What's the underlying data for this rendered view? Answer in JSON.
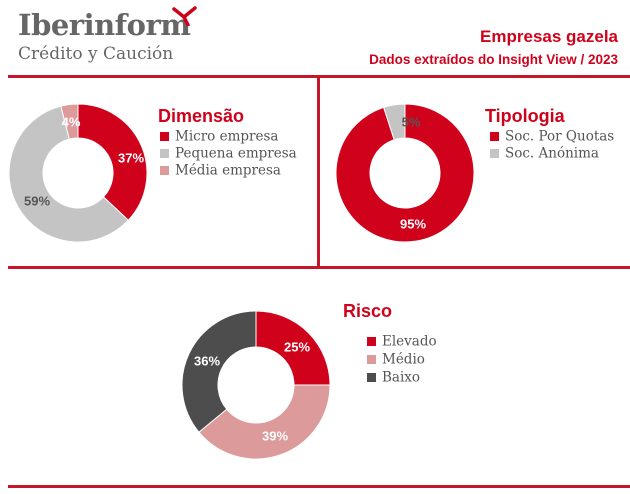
{
  "brand": {
    "name": "Iberinform",
    "tagline": "Crédito y Caución"
  },
  "header": {
    "title": "Empresas gazela",
    "subtitle": "Dados extraídos do Insight View / 2023"
  },
  "colors": {
    "red": "#d0021b",
    "light_gray": "#c4c4c4",
    "pink": "#dc9a9a",
    "dark_gray": "#4d4d4d",
    "rule": "#c4172c"
  },
  "chart_data": [
    {
      "type": "pie",
      "title": "Dimensão",
      "categories": [
        "Micro empresa",
        "Pequena empresa",
        "Média empresa"
      ],
      "values": [
        37,
        59,
        4
      ],
      "labels": [
        "37%",
        "59%",
        "4%"
      ],
      "colors": [
        "#d0021b",
        "#c4c4c4",
        "#dc9a9a"
      ],
      "legend": "right"
    },
    {
      "type": "pie",
      "title": "Tipologia",
      "categories": [
        "Soc. Por Quotas",
        "Soc. Anónima"
      ],
      "values": [
        95,
        5
      ],
      "labels": [
        "95%",
        "5%"
      ],
      "colors": [
        "#d0021b",
        "#c4c4c4"
      ],
      "legend": "right"
    },
    {
      "type": "pie",
      "title": "Risco",
      "categories": [
        "Elevado",
        "Médio",
        "Baixo"
      ],
      "values": [
        25,
        39,
        36
      ],
      "labels": [
        "25%",
        "39%",
        "36%"
      ],
      "colors": [
        "#d0021b",
        "#dc9a9a",
        "#4d4d4d"
      ],
      "legend": "right"
    }
  ]
}
